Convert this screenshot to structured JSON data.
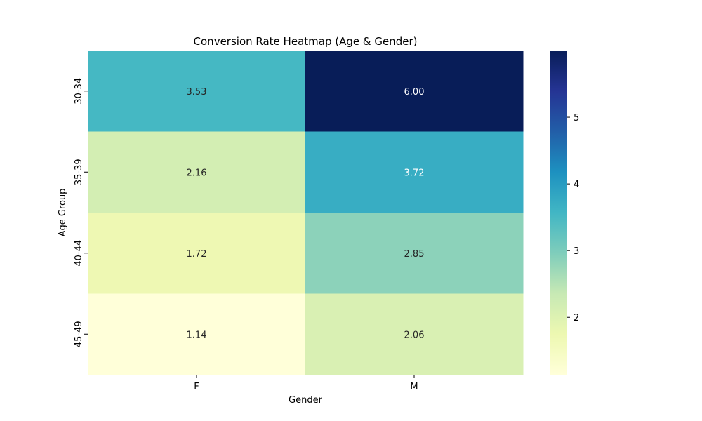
{
  "chart_data": {
    "type": "heatmap",
    "title": "Conversion Rate Heatmap (Age & Gender)",
    "xlabel": "Gender",
    "ylabel": "Age Group",
    "x_categories": [
      "F",
      "M"
    ],
    "y_categories": [
      "30-34",
      "35-39",
      "40-44",
      "45-49"
    ],
    "values": [
      [
        3.53,
        6.0
      ],
      [
        2.16,
        3.72
      ],
      [
        1.72,
        2.85
      ],
      [
        1.14,
        2.06
      ]
    ],
    "annotations": [
      [
        "3.53",
        "6.00"
      ],
      [
        "2.16",
        "3.72"
      ],
      [
        "1.72",
        "2.85"
      ],
      [
        "1.14",
        "2.06"
      ]
    ],
    "colormap": "YlGnBu",
    "vmin": 1.14,
    "vmax": 6.0,
    "colorbar_ticks": [
      2,
      3,
      4,
      5
    ],
    "colorbar_tick_labels": [
      "2",
      "3",
      "4",
      "5"
    ]
  }
}
